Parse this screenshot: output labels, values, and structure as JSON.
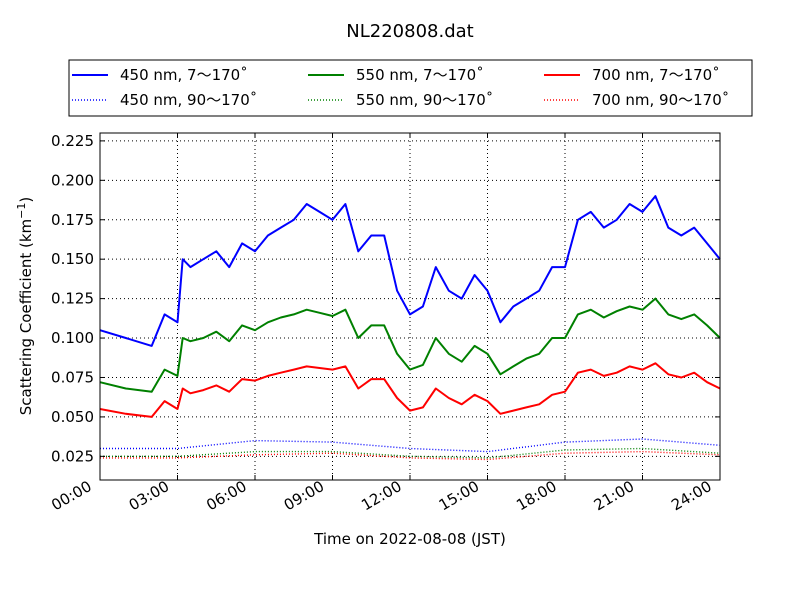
{
  "chart_data": {
    "type": "line",
    "title": "NL220808.dat",
    "xlabel": "Time on 2022-08-08 (JST)",
    "ylabel_main": "Scattering Coefficient (km",
    "ylabel_sup": "−1",
    "ylabel_close": ")",
    "xlim_hours": [
      0,
      24
    ],
    "ylim": [
      0.01,
      0.23
    ],
    "x_ticks": [
      {
        "h": 0,
        "label": "00:00"
      },
      {
        "h": 3,
        "label": "03:00"
      },
      {
        "h": 6,
        "label": "06:00"
      },
      {
        "h": 9,
        "label": "09:00"
      },
      {
        "h": 12,
        "label": "12:00"
      },
      {
        "h": 15,
        "label": "15:00"
      },
      {
        "h": 18,
        "label": "18:00"
      },
      {
        "h": 21,
        "label": "21:00"
      },
      {
        "h": 24,
        "label": "24:00"
      }
    ],
    "y_ticks": [
      {
        "v": 0.025,
        "label": "0.025"
      },
      {
        "v": 0.05,
        "label": "0.050"
      },
      {
        "v": 0.075,
        "label": "0.075"
      },
      {
        "v": 0.1,
        "label": "0.100"
      },
      {
        "v": 0.125,
        "label": "0.125"
      },
      {
        "v": 0.15,
        "label": "0.150"
      },
      {
        "v": 0.175,
        "label": "0.175"
      },
      {
        "v": 0.2,
        "label": "0.200"
      },
      {
        "v": 0.225,
        "label": "0.225"
      }
    ],
    "grid": true,
    "legend_placement": "top",
    "series": [
      {
        "name": "450 nm, 7～170˚",
        "color": "#0000ff",
        "style": "solid",
        "x": [
          0,
          1,
          2,
          2.5,
          3,
          3.2,
          3.5,
          4,
          4.5,
          5,
          5.5,
          6,
          6.5,
          7,
          7.5,
          8,
          8.5,
          9,
          9.5,
          10,
          10.5,
          11,
          11.5,
          12,
          12.5,
          13,
          13.5,
          14,
          14.5,
          15,
          15.5,
          16,
          16.5,
          17,
          17.5,
          18,
          18.5,
          19,
          19.5,
          20,
          20.5,
          21,
          21.5,
          22,
          22.5,
          23,
          23.5,
          24
        ],
        "y": [
          0.105,
          0.1,
          0.095,
          0.115,
          0.11,
          0.15,
          0.145,
          0.15,
          0.155,
          0.145,
          0.16,
          0.155,
          0.165,
          0.17,
          0.175,
          0.185,
          0.18,
          0.175,
          0.185,
          0.155,
          0.165,
          0.165,
          0.13,
          0.115,
          0.12,
          0.145,
          0.13,
          0.125,
          0.14,
          0.13,
          0.11,
          0.12,
          0.125,
          0.13,
          0.145,
          0.145,
          0.175,
          0.18,
          0.17,
          0.175,
          0.185,
          0.18,
          0.19,
          0.17,
          0.165,
          0.17,
          0.16,
          0.15
        ]
      },
      {
        "name": "550 nm, 7～170˚",
        "color": "#008000",
        "style": "solid",
        "x": [
          0,
          1,
          2,
          2.5,
          3,
          3.2,
          3.5,
          4,
          4.5,
          5,
          5.5,
          6,
          6.5,
          7,
          7.5,
          8,
          8.5,
          9,
          9.5,
          10,
          10.5,
          11,
          11.5,
          12,
          12.5,
          13,
          13.5,
          14,
          14.5,
          15,
          15.5,
          16,
          16.5,
          17,
          17.5,
          18,
          18.5,
          19,
          19.5,
          20,
          20.5,
          21,
          21.5,
          22,
          22.5,
          23,
          23.5,
          24
        ],
        "y": [
          0.072,
          0.068,
          0.066,
          0.08,
          0.076,
          0.1,
          0.098,
          0.1,
          0.104,
          0.098,
          0.108,
          0.105,
          0.11,
          0.113,
          0.115,
          0.118,
          0.116,
          0.114,
          0.118,
          0.1,
          0.108,
          0.108,
          0.09,
          0.08,
          0.083,
          0.1,
          0.09,
          0.085,
          0.095,
          0.09,
          0.077,
          0.082,
          0.087,
          0.09,
          0.1,
          0.1,
          0.115,
          0.118,
          0.113,
          0.117,
          0.12,
          0.118,
          0.125,
          0.115,
          0.112,
          0.115,
          0.108,
          0.1
        ]
      },
      {
        "name": "700 nm, 7～170˚",
        "color": "#ff0000",
        "style": "solid",
        "x": [
          0,
          1,
          2,
          2.5,
          3,
          3.2,
          3.5,
          4,
          4.5,
          5,
          5.5,
          6,
          6.5,
          7,
          7.5,
          8,
          8.5,
          9,
          9.5,
          10,
          10.5,
          11,
          11.5,
          12,
          12.5,
          13,
          13.5,
          14,
          14.5,
          15,
          15.5,
          16,
          16.5,
          17,
          17.5,
          18,
          18.5,
          19,
          19.5,
          20,
          20.5,
          21,
          21.5,
          22,
          22.5,
          23,
          23.5,
          24
        ],
        "y": [
          0.055,
          0.052,
          0.05,
          0.06,
          0.055,
          0.068,
          0.065,
          0.067,
          0.07,
          0.066,
          0.074,
          0.073,
          0.076,
          0.078,
          0.08,
          0.082,
          0.081,
          0.08,
          0.082,
          0.068,
          0.074,
          0.074,
          0.062,
          0.054,
          0.056,
          0.068,
          0.062,
          0.058,
          0.064,
          0.06,
          0.052,
          0.054,
          0.056,
          0.058,
          0.064,
          0.066,
          0.078,
          0.08,
          0.076,
          0.078,
          0.082,
          0.08,
          0.084,
          0.077,
          0.075,
          0.078,
          0.072,
          0.068
        ]
      },
      {
        "name": "450 nm, 90～170˚",
        "color": "#0000ff",
        "style": "dotted",
        "x": [
          0,
          3,
          6,
          9,
          12,
          15,
          18,
          21,
          24
        ],
        "y": [
          0.03,
          0.03,
          0.035,
          0.034,
          0.03,
          0.028,
          0.034,
          0.036,
          0.032
        ]
      },
      {
        "name": "550 nm, 90～170˚",
        "color": "#008000",
        "style": "dotted",
        "x": [
          0,
          3,
          6,
          9,
          12,
          15,
          18,
          21,
          24
        ],
        "y": [
          0.025,
          0.025,
          0.028,
          0.028,
          0.025,
          0.024,
          0.029,
          0.03,
          0.027
        ]
      },
      {
        "name": "700 nm, 90～170˚",
        "color": "#ff0000",
        "style": "dotted",
        "x": [
          0,
          3,
          6,
          9,
          12,
          15,
          18,
          21,
          24
        ],
        "y": [
          0.024,
          0.024,
          0.026,
          0.027,
          0.024,
          0.023,
          0.027,
          0.028,
          0.026
        ]
      }
    ]
  }
}
